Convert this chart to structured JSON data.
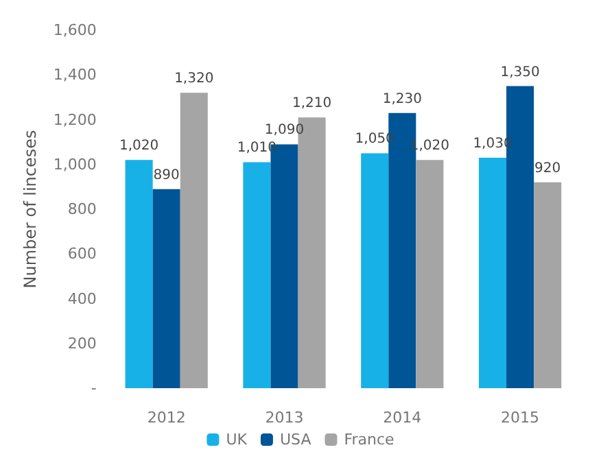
{
  "chart_data": {
    "type": "bar",
    "ylabel": "Number of linceses",
    "categories": [
      "2012",
      "2013",
      "2014",
      "2015"
    ],
    "series": [
      {
        "name": "UK",
        "color": "#17b1e8",
        "values": [
          1020,
          1010,
          1050,
          1030
        ],
        "value_labels": [
          "1,020",
          "1,010",
          "1,050",
          "1,030"
        ]
      },
      {
        "name": "USA",
        "color": "#005596",
        "values": [
          890,
          1090,
          1230,
          1350
        ],
        "value_labels": [
          "890",
          "1,090",
          "1,230",
          "1,350"
        ]
      },
      {
        "name": "France",
        "color": "#a5a5a5",
        "values": [
          1320,
          1210,
          1020,
          920
        ],
        "value_labels": [
          "1,320",
          "1,210",
          "1,020",
          "920"
        ]
      }
    ],
    "ylim": [
      0,
      1600
    ],
    "yticks": [
      {
        "value": 0,
        "label": "-"
      },
      200,
      400,
      600,
      800,
      {
        "value": 1000,
        "label": "1,000"
      },
      {
        "value": 1200,
        "label": "1,200"
      },
      {
        "value": 1400,
        "label": "1,400"
      },
      {
        "value": 1600,
        "label": "1,600"
      }
    ],
    "grid": false,
    "legend": "bottom"
  }
}
